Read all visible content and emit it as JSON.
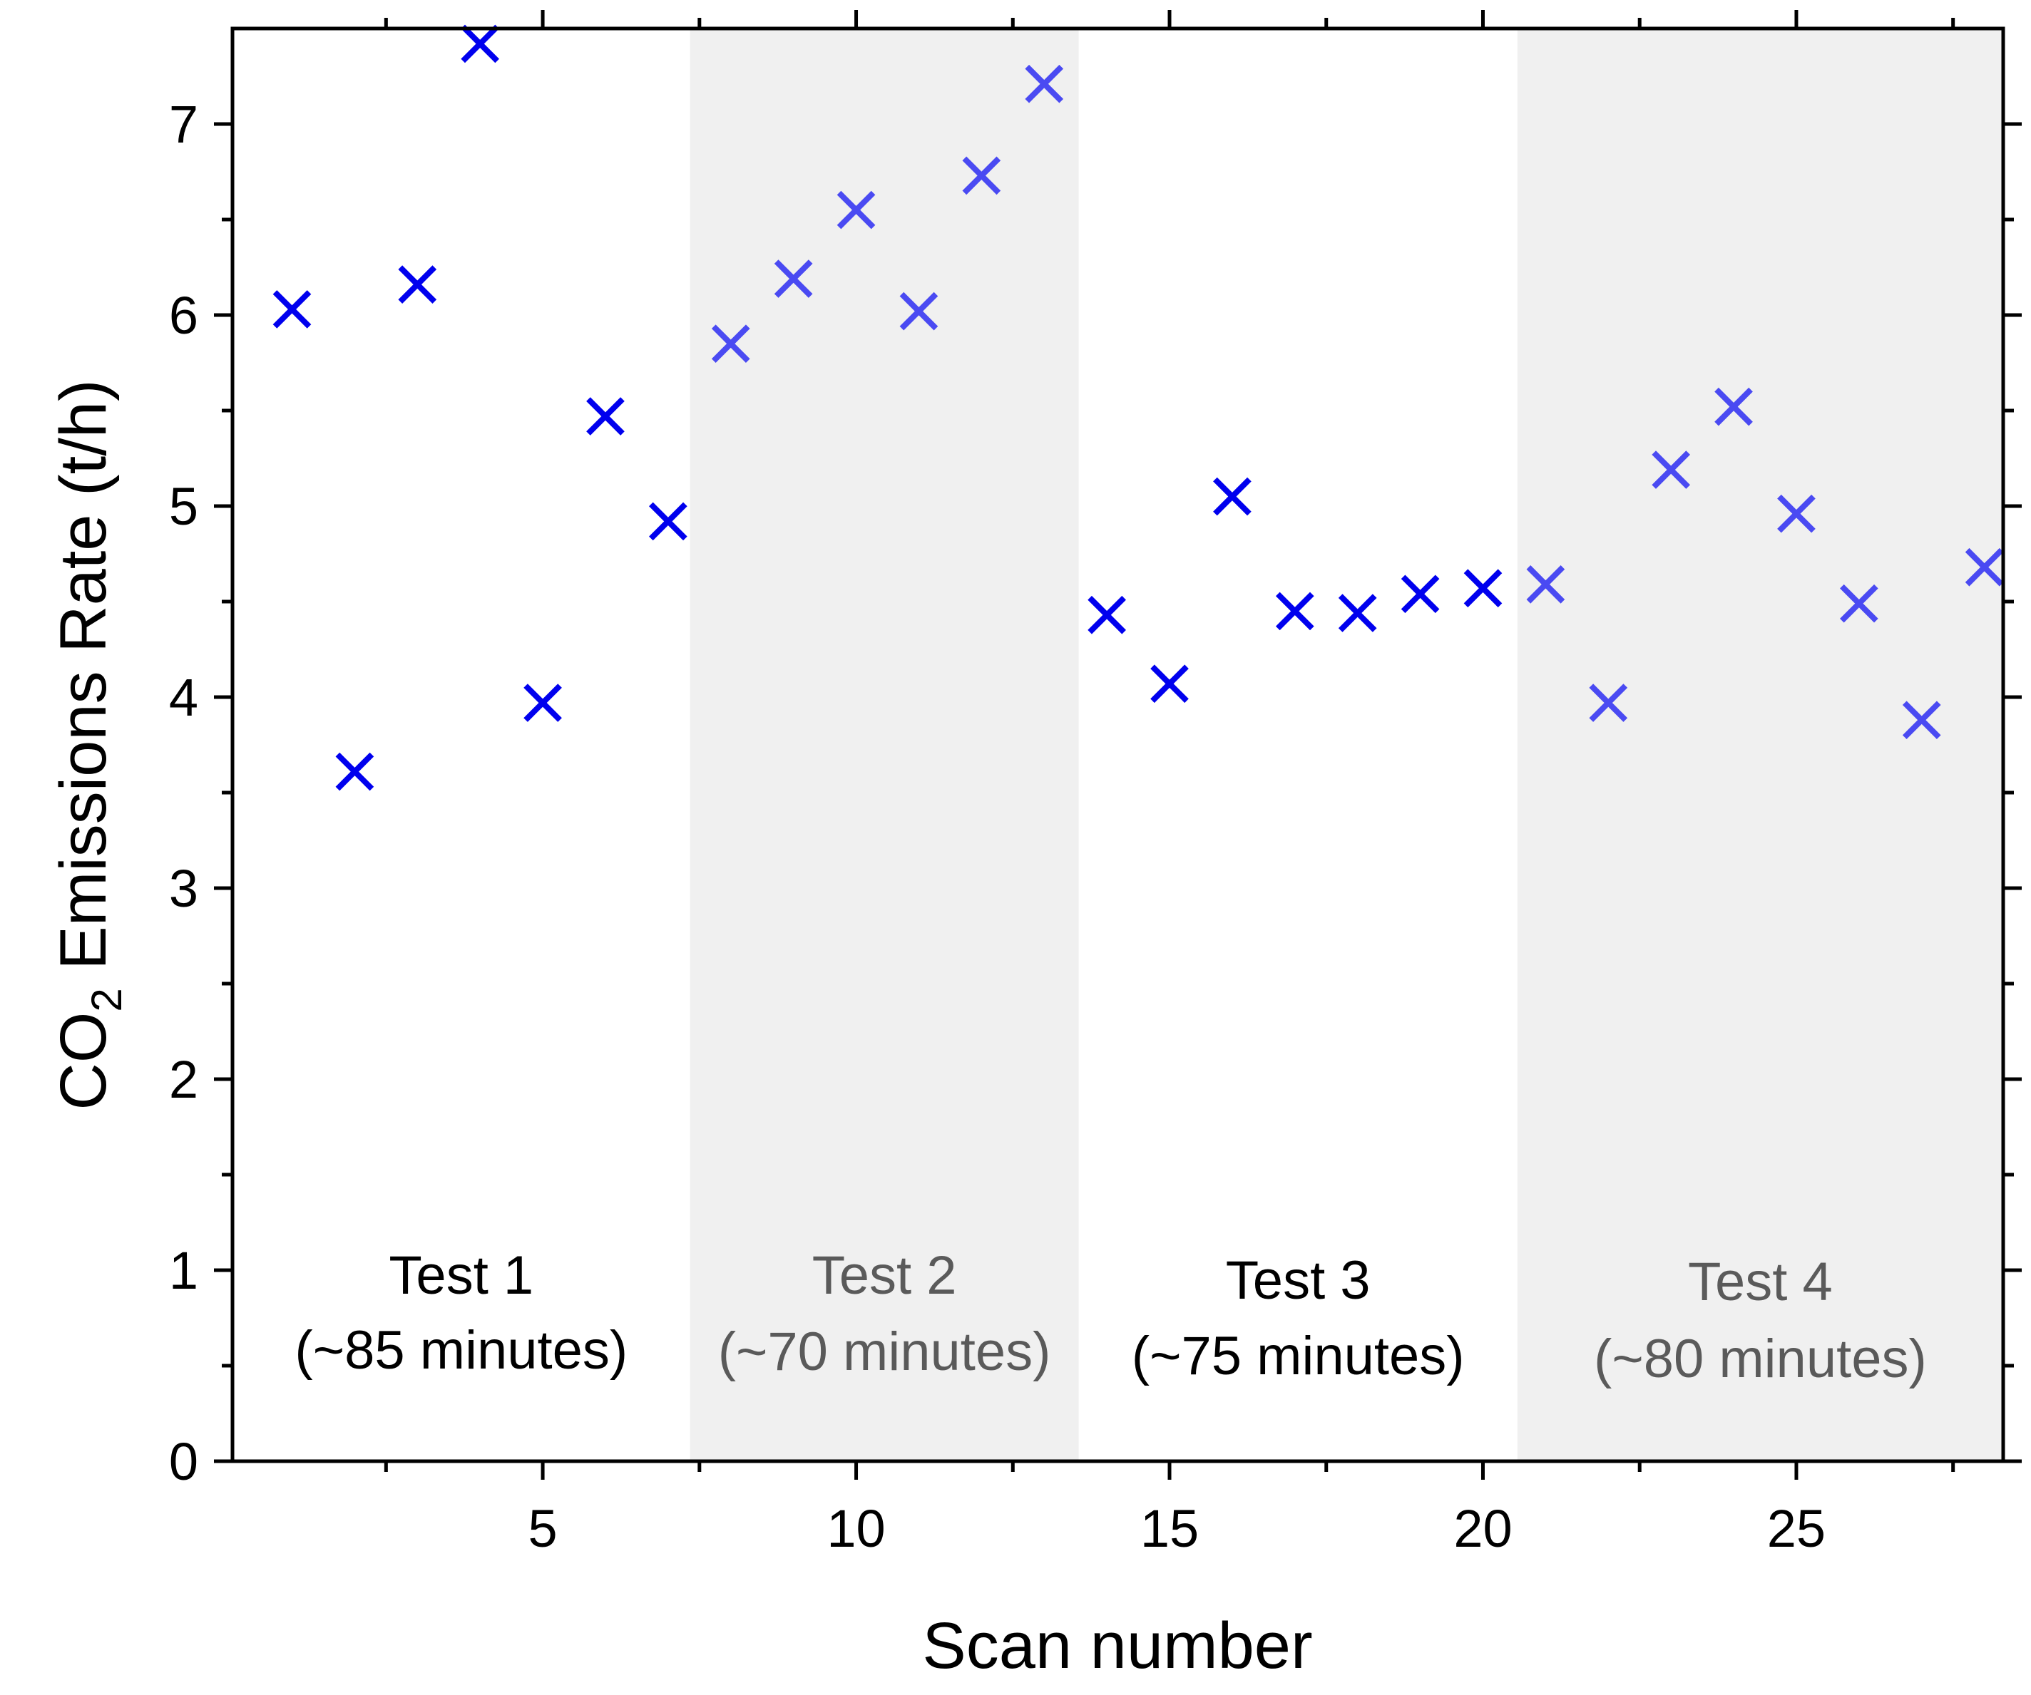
{
  "chart_data": {
    "type": "scatter",
    "title": "",
    "xlabel": "Scan number",
    "ylabel_main": "CO",
    "ylabel_sub": "2",
    "ylabel_rest": " Emissions Rate (t/h)",
    "xlim": [
      0.05,
      28.3
    ],
    "ylim": [
      0,
      7.5
    ],
    "x_ticks": [
      5,
      10,
      15,
      20,
      25
    ],
    "x_tick_labels": [
      "5",
      "10",
      "15",
      "20",
      "25"
    ],
    "x_minor_ticks": [
      2.5,
      7.5,
      12.5,
      17.5,
      22.5,
      27.5
    ],
    "y_ticks": [
      0,
      1,
      2,
      3,
      4,
      5,
      6,
      7
    ],
    "y_tick_labels": [
      "0",
      "1",
      "2",
      "3",
      "4",
      "5",
      "6",
      "7"
    ],
    "y_minor_ticks": [
      0.5,
      1.5,
      2.5,
      3.5,
      4.5,
      5.5,
      6.5
    ],
    "regions": [
      {
        "name": "Test 1",
        "duration": "(~85 minutes)",
        "x_start": 0.05,
        "x_end": 7.35,
        "shaded": false,
        "text_color": "#000000"
      },
      {
        "name": "Test 2",
        "duration": "(~70 minutes)",
        "x_start": 7.35,
        "x_end": 13.55,
        "shaded": true,
        "text_color": "#5a5a5a"
      },
      {
        "name": "Test 3",
        "duration": "(~75 minutes)",
        "x_start": 13.55,
        "x_end": 20.55,
        "shaded": false,
        "text_color": "#000000"
      },
      {
        "name": "Test 4",
        "duration": "(~80 minutes)",
        "x_start": 20.55,
        "x_end": 28.3,
        "shaded": true,
        "text_color": "#5a5a5a"
      }
    ],
    "series": [
      {
        "name": "Test 1",
        "marker": "x",
        "color": "#0000ee",
        "x": [
          1,
          2,
          3,
          4,
          5,
          6,
          7
        ],
        "y": [
          6.03,
          3.61,
          6.16,
          7.42,
          3.97,
          5.47,
          4.92
        ]
      },
      {
        "name": "Test 2",
        "marker": "x",
        "color": "#4a4af2",
        "x": [
          8,
          9,
          10,
          11,
          12,
          13
        ],
        "y": [
          5.85,
          6.19,
          6.55,
          6.02,
          6.73,
          7.21
        ]
      },
      {
        "name": "Test 3",
        "marker": "x",
        "color": "#0000ee",
        "x": [
          14,
          15,
          16,
          17,
          18,
          19,
          20
        ],
        "y": [
          4.43,
          4.07,
          5.05,
          4.45,
          4.44,
          4.54,
          4.57
        ]
      },
      {
        "name": "Test 4",
        "marker": "x",
        "color": "#4a4af2",
        "x": [
          21,
          22,
          23,
          24,
          25,
          26,
          27,
          28
        ],
        "y": [
          4.59,
          3.97,
          5.19,
          5.52,
          4.96,
          4.49,
          3.88,
          4.68
        ]
      }
    ],
    "colors": {
      "shade": "#f0f0f0",
      "axis": "#000000"
    }
  }
}
